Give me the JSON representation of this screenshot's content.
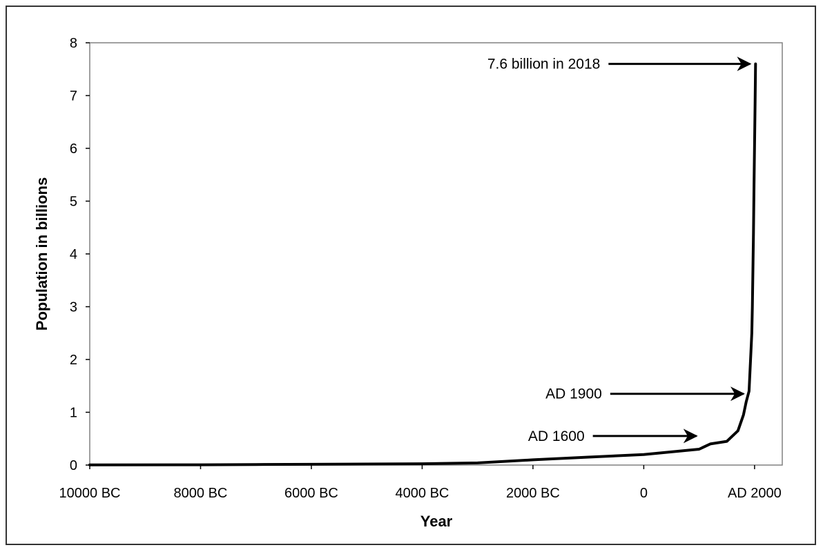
{
  "chart_data": {
    "type": "line",
    "title": "",
    "xlabel": "Year",
    "ylabel": "Population in billions",
    "xlim": [
      -10000,
      2500
    ],
    "ylim": [
      0,
      8
    ],
    "x_ticks": [
      {
        "value": -10000,
        "label": "10000 BC"
      },
      {
        "value": -8000,
        "label": "8000 BC"
      },
      {
        "value": -6000,
        "label": "6000 BC"
      },
      {
        "value": -4000,
        "label": "4000 BC"
      },
      {
        "value": -2000,
        "label": "2000 BC"
      },
      {
        "value": 0,
        "label": "0"
      },
      {
        "value": 2000,
        "label": "AD 2000"
      }
    ],
    "y_ticks": [
      0,
      1,
      2,
      3,
      4,
      5,
      6,
      7,
      8
    ],
    "grid": false,
    "legend": "none",
    "line_color": "#000000",
    "series": [
      {
        "x": [
          -10000,
          -8000,
          -7000,
          -6000,
          -5000,
          -4000,
          -3000,
          -2000,
          -1000,
          0,
          500,
          1000,
          1200,
          1500,
          1600,
          1700,
          1800,
          1850,
          1900,
          1950,
          1960,
          1970,
          1980,
          1990,
          2000,
          2010,
          2018
        ],
        "y": [
          0.004,
          0.005,
          0.01,
          0.015,
          0.02,
          0.025,
          0.04,
          0.1,
          0.15,
          0.2,
          0.25,
          0.3,
          0.4,
          0.45,
          0.55,
          0.65,
          0.95,
          1.2,
          1.4,
          2.5,
          3.0,
          3.7,
          4.4,
          5.3,
          6.1,
          6.9,
          7.6
        ]
      }
    ],
    "annotations": [
      {
        "text": "7.6 billion in 2018",
        "x": 2018,
        "y": 7.6
      },
      {
        "text": "AD 1900",
        "x": 1900,
        "y": 1.35
      },
      {
        "text": "AD 1600",
        "x": 1050,
        "y": 0.55
      }
    ]
  }
}
